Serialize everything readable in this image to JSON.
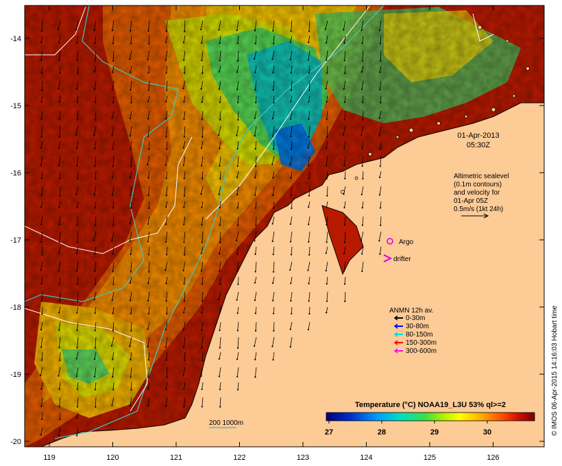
{
  "map": {
    "date_text": "01-Apr-2013",
    "time_text": "05:30Z",
    "lon_ticks": [
      "119",
      "120",
      "121",
      "122",
      "123",
      "124",
      "125",
      "126"
    ],
    "lat_ticks": [
      "-14",
      "-15",
      "-16",
      "-17",
      "-18",
      "-19",
      "-20"
    ],
    "altimetry_note": [
      "Altimetric sealevel",
      "(0.1m contours)",
      "and velocity for",
      "01-Apr 05Z",
      "0.5m/s (1kt 24h)"
    ],
    "argo_label": "Argo",
    "drifter_label": "drifter",
    "bathymetry_label": "200  1000m",
    "colorbar_title": "Temperature (°C) NOAA19_L3U 53% ql>=2",
    "colorbar_ticks": [
      "27",
      "28",
      "29",
      "30"
    ],
    "credit": "© IMOS 06-Apr-2015 14:16:03 Hobart time"
  },
  "legend": {
    "title": "ANMN 12h av.",
    "items": [
      {
        "label": "0-30m",
        "color": "#000000"
      },
      {
        "label": "30-80m",
        "color": "#0000ff"
      },
      {
        "label": "80-150m",
        "color": "#00d8d8"
      },
      {
        "label": "150-300m",
        "color": "#ff0000"
      },
      {
        "label": "300-600m",
        "color": "#ff00ff"
      }
    ]
  },
  "colors": {
    "land": "#fccb96",
    "argo": "#e000e0",
    "drifter": "#e000e0",
    "bathy_200": "#40c8c0",
    "bathy_1000": "#ffffff"
  }
}
